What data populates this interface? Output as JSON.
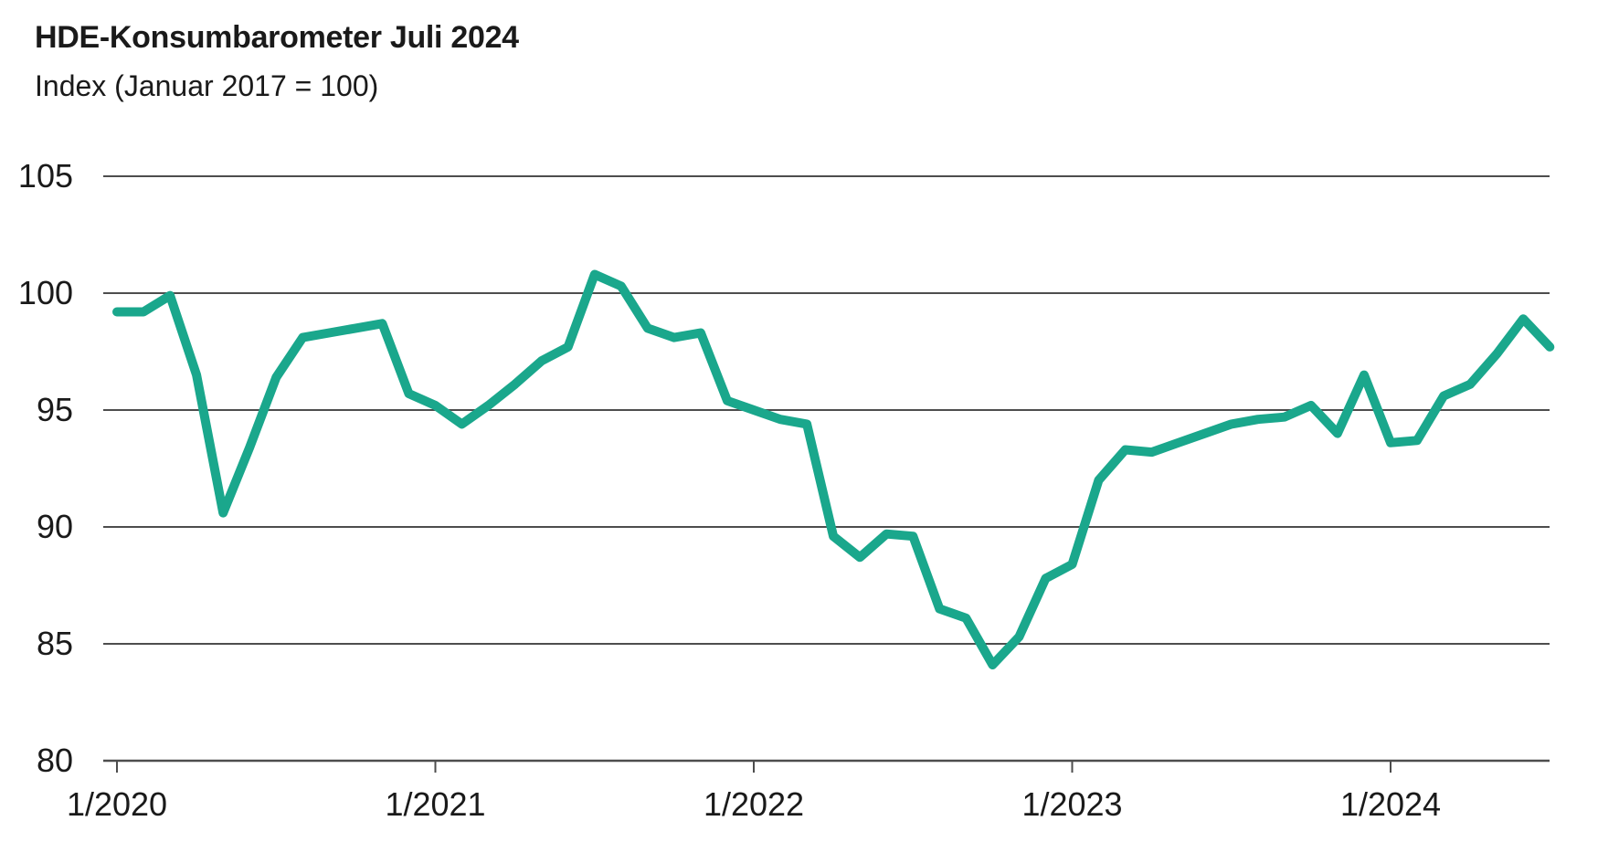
{
  "header": {
    "title": "HDE-Konsumbarometer Juli 2024",
    "subtitle": "Index (Januar 2017 = 100)"
  },
  "chart_data": {
    "type": "line",
    "title": "HDE-Konsumbarometer Juli 2024",
    "subtitle": "Index (Januar 2017 = 100)",
    "series_name": "HDE-Konsumbarometer",
    "x": [
      "1/2020",
      "2/2020",
      "3/2020",
      "4/2020",
      "5/2020",
      "6/2020",
      "7/2020",
      "8/2020",
      "9/2020",
      "10/2020",
      "11/2020",
      "12/2020",
      "1/2021",
      "2/2021",
      "3/2021",
      "4/2021",
      "5/2021",
      "6/2021",
      "7/2021",
      "8/2021",
      "9/2021",
      "10/2021",
      "11/2021",
      "12/2021",
      "1/2022",
      "2/2022",
      "3/2022",
      "4/2022",
      "5/2022",
      "6/2022",
      "7/2022",
      "8/2022",
      "9/2022",
      "10/2022",
      "11/2022",
      "12/2022",
      "1/2023",
      "2/2023",
      "3/2023",
      "4/2023",
      "5/2023",
      "6/2023",
      "7/2023",
      "8/2023",
      "9/2023",
      "10/2023",
      "11/2023",
      "12/2023",
      "1/2024",
      "2/2024",
      "3/2024",
      "4/2024",
      "5/2024",
      "6/2024",
      "7/2024"
    ],
    "values": [
      99.2,
      99.2,
      99.9,
      96.5,
      90.6,
      93.4,
      96.4,
      98.1,
      98.3,
      98.5,
      98.7,
      95.7,
      95.2,
      94.4,
      95.2,
      96.1,
      97.1,
      97.7,
      100.8,
      100.3,
      98.5,
      98.1,
      98.3,
      95.4,
      95.0,
      94.6,
      94.4,
      89.6,
      88.7,
      89.7,
      89.6,
      86.5,
      86.1,
      84.1,
      85.3,
      87.8,
      88.4,
      92.0,
      93.3,
      93.2,
      93.6,
      94.0,
      94.4,
      94.6,
      94.7,
      95.2,
      94.0,
      96.5,
      93.6,
      93.7,
      95.6,
      96.1,
      97.4,
      98.9,
      97.7
    ],
    "ylim": [
      80,
      105
    ],
    "yticks": [
      105,
      100,
      95,
      90,
      85,
      80
    ],
    "xticks": [
      {
        "label": "1/2020",
        "index": 0
      },
      {
        "label": "1/2021",
        "index": 12
      },
      {
        "label": "1/2022",
        "index": 24
      },
      {
        "label": "1/2023",
        "index": 36
      },
      {
        "label": "1/2024",
        "index": 48
      }
    ],
    "grid": "horizontal",
    "legend": "none",
    "line_color": "#1AA78C",
    "axis_color": "#4D4D4D",
    "text_color": "#1A1A1A"
  }
}
